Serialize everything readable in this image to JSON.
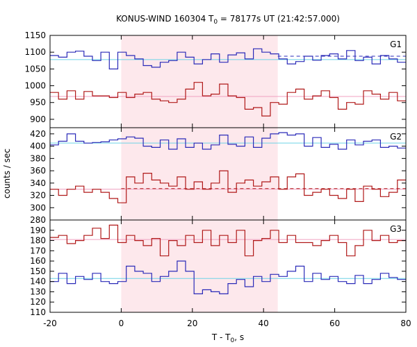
{
  "chart_data": {
    "type": "line",
    "title_prefix": "KONUS-WIND 160304 T",
    "title_subscript": "0",
    "title_suffix": " = 78177s UT (21:42:57.000)",
    "xlabel_prefix": "T - T",
    "xlabel_subscript": "0",
    "xlabel_suffix": ", s",
    "ylabel": "counts / sec",
    "xlim": [
      -20,
      80
    ],
    "x_ticks": [
      -20,
      0,
      20,
      40,
      60,
      80
    ],
    "x_tick_labels": [
      "-20",
      "0",
      "20",
      "40",
      "60",
      "80"
    ],
    "shaded_interval": [
      0,
      44
    ],
    "colors": {
      "blue": "#2a2ab8",
      "red": "#b01818",
      "cyan": "#6ed3e6",
      "pink": "#f0a0c0",
      "shade": "#fde8ec"
    },
    "panels": [
      {
        "name": "G1",
        "ylim": [
          875,
          1150
        ],
        "yticks": [
          900,
          950,
          1000,
          1050,
          1100,
          1150
        ],
        "ytick_labels": [
          "900",
          "950",
          "1000",
          "1050",
          "1100",
          "1150"
        ],
        "series": [
          {
            "color": "blue",
            "values": [
              1090,
              1085,
              1100,
              1103,
              1088,
              1075,
              1100,
              1050,
              1100,
              1090,
              1080,
              1060,
              1055,
              1070,
              1075,
              1100,
              1085,
              1065,
              1078,
              1095,
              1070,
              1092,
              1098,
              1080,
              1110,
              1100,
              1095,
              1080,
              1065,
              1072,
              1088,
              1076,
              1090,
              1095,
              1080,
              1105,
              1075,
              1085,
              1065,
              1090,
              1080,
              1070
            ]
          },
          {
            "color": "red",
            "values": [
              980,
              960,
              985,
              960,
              983,
              970,
              970,
              965,
              980,
              965,
              975,
              980,
              960,
              955,
              950,
              960,
              990,
              1010,
              970,
              975,
              1005,
              970,
              965,
              930,
              935,
              910,
              950,
              945,
              980,
              990,
              960,
              970,
              985,
              965,
              930,
              950,
              945,
              985,
              975,
              960,
              980,
              955
            ]
          }
        ],
        "fits": [
          {
            "color": "cyan",
            "style": "solid",
            "from": -20,
            "to": 80,
            "value": 1078
          },
          {
            "color": "pink",
            "style": "solid",
            "from": -20,
            "to": 80,
            "value": 968
          },
          {
            "color": "blue",
            "style": "dashed",
            "from": 44,
            "to": 80,
            "value": 1088
          }
        ]
      },
      {
        "name": "G2",
        "ylim": [
          280,
          430
        ],
        "yticks": [
          280,
          300,
          320,
          340,
          360,
          380,
          400,
          420
        ],
        "ytick_labels": [
          "280",
          "300",
          "320",
          "340",
          "360",
          "380",
          "400",
          "420"
        ],
        "series": [
          {
            "color": "blue",
            "values": [
              402,
              408,
              420,
              408,
              405,
              406,
              407,
              410,
              412,
              415,
              413,
              400,
              398,
              410,
              395,
              412,
              398,
              405,
              395,
              402,
              418,
              403,
              400,
              415,
              398,
              413,
              420,
              422,
              418,
              420,
              400,
              414,
              398,
              403,
              395,
              410,
              402,
              408,
              410,
              398,
              400,
              397
            ]
          },
          {
            "color": "red",
            "values": [
              330,
              320,
              330,
              335,
              325,
              330,
              325,
              315,
              308,
              350,
              340,
              356,
              345,
              340,
              335,
              350,
              330,
              342,
              330,
              340,
              360,
              325,
              340,
              345,
              335,
              342,
              350,
              330,
              350,
              355,
              320,
              325,
              330,
              320,
              315,
              330,
              310,
              335,
              330,
              318,
              325,
              345
            ]
          }
        ],
        "fits": [
          {
            "color": "cyan",
            "style": "solid",
            "from": -20,
            "to": 80,
            "value": 405
          },
          {
            "color": "pink",
            "style": "solid",
            "from": -20,
            "to": 80,
            "value": 330
          },
          {
            "color": "red",
            "style": "dashed",
            "from": 0,
            "to": 80,
            "value": 331
          }
        ]
      },
      {
        "name": "G3",
        "ylim": [
          110,
          200
        ],
        "yticks": [
          110,
          120,
          130,
          140,
          150,
          160,
          170,
          180,
          190
        ],
        "ytick_labels": [
          "110",
          "120",
          "130",
          "140",
          "150",
          "160",
          "170",
          "180",
          "190"
        ],
        "series": [
          {
            "color": "blue",
            "values": [
              140,
              148,
              138,
              145,
              142,
              148,
              140,
              138,
              140,
              155,
              150,
              148,
              140,
              145,
              150,
              160,
              150,
              128,
              132,
              130,
              128,
              138,
              142,
              135,
              145,
              140,
              147,
              145,
              150,
              155,
              140,
              148,
              142,
              145,
              140,
              138,
              146,
              138,
              142,
              148,
              144,
              142
            ]
          },
          {
            "color": "red",
            "values": [
              183,
              185,
              177,
              180,
              185,
              192,
              182,
              195,
              178,
              185,
              180,
              175,
              182,
              165,
              180,
              175,
              185,
              178,
              190,
              175,
              185,
              178,
              190,
              165,
              180,
              182,
              190,
              178,
              185,
              178,
              178,
              175,
              180,
              185,
              178,
              165,
              175,
              190,
              180,
              185,
              178,
              180
            ]
          }
        ],
        "fits": [
          {
            "color": "pink",
            "style": "solid",
            "from": -20,
            "to": 80,
            "value": 181
          },
          {
            "color": "cyan",
            "style": "solid",
            "from": -20,
            "to": 80,
            "value": 143
          }
        ]
      }
    ]
  }
}
